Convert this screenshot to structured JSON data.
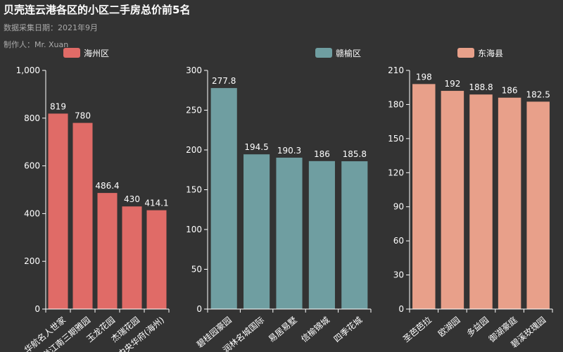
{
  "header": {
    "title": "贝壳连云港各区的小区二手房总价前5名",
    "subtitle": "数据采集日期：2021年9月",
    "author": "制作人：Mr. Xuan"
  },
  "chart_data": [
    {
      "type": "bar",
      "series": [
        {
          "name": "海州区",
          "values": [
            819,
            780,
            486.4,
            430,
            414.1
          ]
        }
      ],
      "categories": [
        "华航名人世家",
        "香溢江南三期雅园",
        "玉龙花园",
        "杰瑞花园",
        "中央华府(海州)"
      ],
      "ylim": [
        0,
        1000
      ],
      "yticks": [
        "0",
        "200",
        "400",
        "600",
        "800",
        "1,000"
      ],
      "color": "#e06b67",
      "legend": "top"
    },
    {
      "type": "bar",
      "series": [
        {
          "name": "赣榆区",
          "values": [
            277.8,
            194.5,
            190.3,
            186,
            185.8
          ]
        }
      ],
      "categories": [
        "碧桂园豪园",
        "润林名城国际",
        "易居易墅",
        "信榆锦城",
        "四季花城"
      ],
      "ylim": [
        0,
        300
      ],
      "yticks": [
        "0",
        "50",
        "100",
        "150",
        "200",
        "250",
        "300"
      ],
      "color": "#6f9ea1",
      "legend": "top"
    },
    {
      "type": "bar",
      "series": [
        {
          "name": "东海县",
          "values": [
            198,
            192,
            188.8,
            186,
            182.5
          ]
        }
      ],
      "categories": [
        "圣芭芭拉",
        "欧湖园",
        "多益园",
        "御湖豪庭",
        "碧溪玫瑰园"
      ],
      "ylim": [
        0,
        210
      ],
      "yticks": [
        "0",
        "30",
        "60",
        "90",
        "120",
        "150",
        "180",
        "210"
      ],
      "color": "#e8a08a",
      "legend": "top"
    }
  ]
}
